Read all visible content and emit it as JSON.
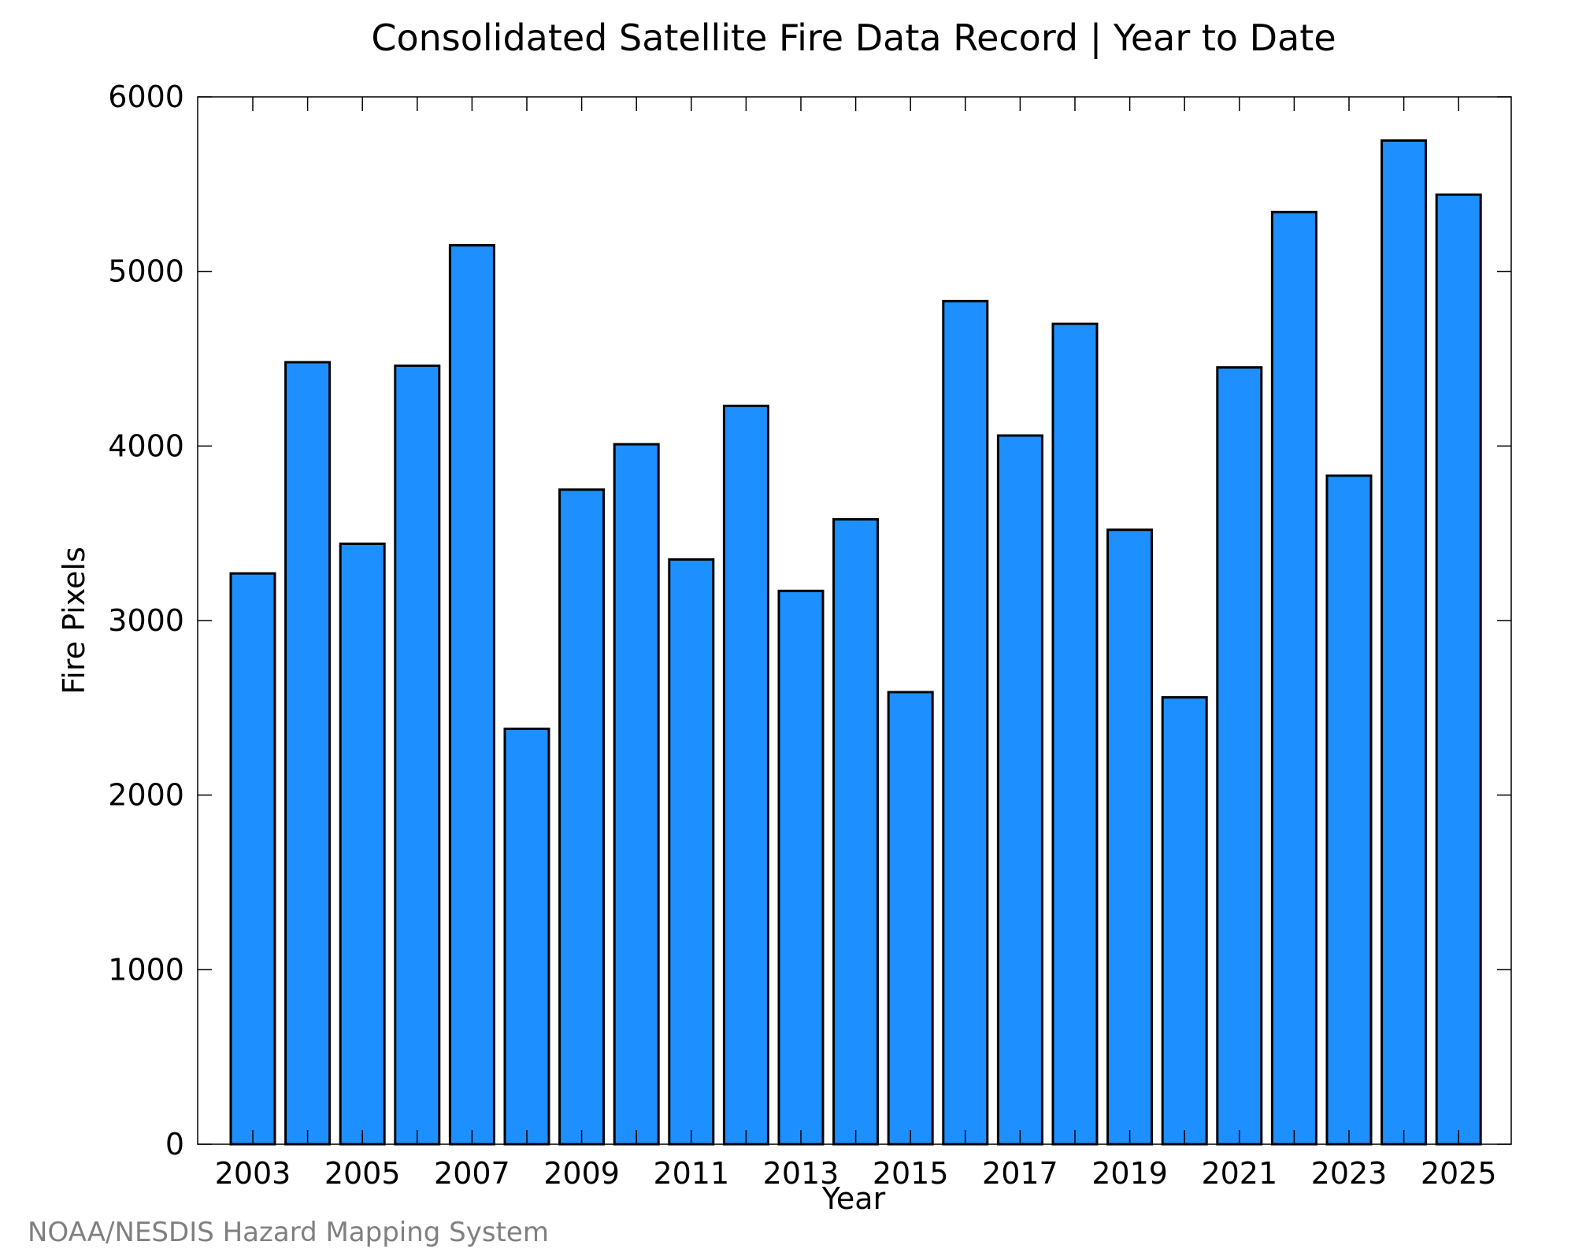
{
  "chart_data": {
    "type": "bar",
    "title": "Consolidated Satellite Fire Data Record | Year to Date",
    "xlabel": "Year",
    "ylabel": "Fire Pixels",
    "categories": [
      "2003",
      "2004",
      "2005",
      "2006",
      "2007",
      "2008",
      "2009",
      "2010",
      "2011",
      "2012",
      "2013",
      "2014",
      "2015",
      "2016",
      "2017",
      "2018",
      "2019",
      "2020",
      "2021",
      "2022",
      "2023",
      "2024",
      "2025"
    ],
    "values": [
      3270,
      4480,
      3440,
      4460,
      5150,
      2380,
      3750,
      4010,
      3350,
      4230,
      3170,
      3580,
      2590,
      4830,
      4060,
      4700,
      3520,
      2560,
      4450,
      5340,
      3830,
      5750,
      5440
    ],
    "x_tick_labels": [
      "2003",
      "2005",
      "2007",
      "2009",
      "2011",
      "2013",
      "2015",
      "2017",
      "2019",
      "2021",
      "2023",
      "2025"
    ],
    "y_tick_labels": [
      "0",
      "1000",
      "2000",
      "3000",
      "4000",
      "5000",
      "6000"
    ],
    "ylim": [
      0,
      6000
    ],
    "grid": false,
    "legend": "none",
    "bar_color": "#1e8fff",
    "bar_edge_color": "#000000"
  },
  "credit": {
    "text": "NOAA/NESDIS Hazard Mapping System",
    "color": "#808080"
  }
}
